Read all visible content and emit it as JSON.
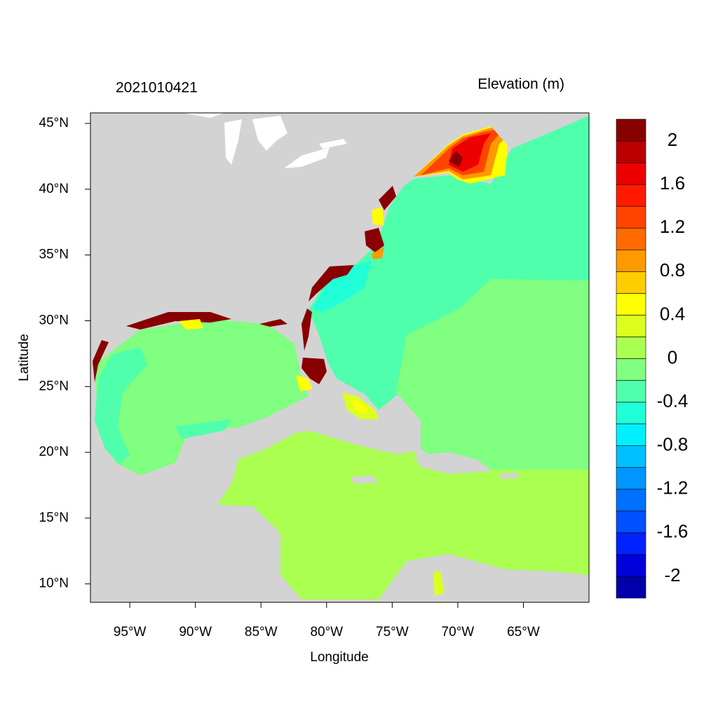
{
  "chart_data": {
    "type": "contour-map",
    "title": "2021010421",
    "colorbar_title": "Elevation (m)",
    "xlabel": "Longitude",
    "ylabel": "Latitude",
    "xlim": [
      -98,
      -60
    ],
    "ylim": [
      8.6,
      45.8
    ],
    "xticks": [
      {
        "value": -95,
        "label": "95°W"
      },
      {
        "value": -90,
        "label": "90°W"
      },
      {
        "value": -85,
        "label": "85°W"
      },
      {
        "value": -80,
        "label": "80°W"
      },
      {
        "value": -75,
        "label": "75°W"
      },
      {
        "value": -70,
        "label": "70°W"
      },
      {
        "value": -65,
        "label": "65°W"
      }
    ],
    "yticks": [
      {
        "value": 10,
        "label": "10°N"
      },
      {
        "value": 15,
        "label": "15°N"
      },
      {
        "value": 20,
        "label": "20°N"
      },
      {
        "value": 25,
        "label": "25°N"
      },
      {
        "value": 30,
        "label": "30°N"
      },
      {
        "value": 35,
        "label": "35°N"
      },
      {
        "value": 40,
        "label": "40°N"
      },
      {
        "value": 45,
        "label": "45°N"
      }
    ],
    "land_color": "#d3d3d3",
    "colorbar": {
      "levels": [
        -2,
        -1.8,
        -1.6,
        -1.4,
        -1.2,
        -1,
        -0.8,
        -0.6,
        -0.4,
        -0.2,
        0,
        0.2,
        0.4,
        0.6,
        0.8,
        1,
        1.2,
        1.4,
        1.6,
        1.8,
        2
      ],
      "colors": [
        "#0000aa",
        "#0000dd",
        "#0022ff",
        "#0050ff",
        "#0070ff",
        "#0095ff",
        "#00c0ff",
        "#00f0ff",
        "#20ffd8",
        "#50ffac",
        "#80ff80",
        "#aaff50",
        "#ddff20",
        "#ffff00",
        "#ffcc00",
        "#ff9900",
        "#ff6a00",
        "#ff4400",
        "#ff1a00",
        "#ee0000",
        "#bb0000",
        "#880000"
      ],
      "ticks": [
        2,
        1.6,
        1.2,
        0.8,
        0.4,
        0,
        -0.4,
        -0.8,
        -1.2,
        -1.6,
        -2
      ]
    }
  }
}
